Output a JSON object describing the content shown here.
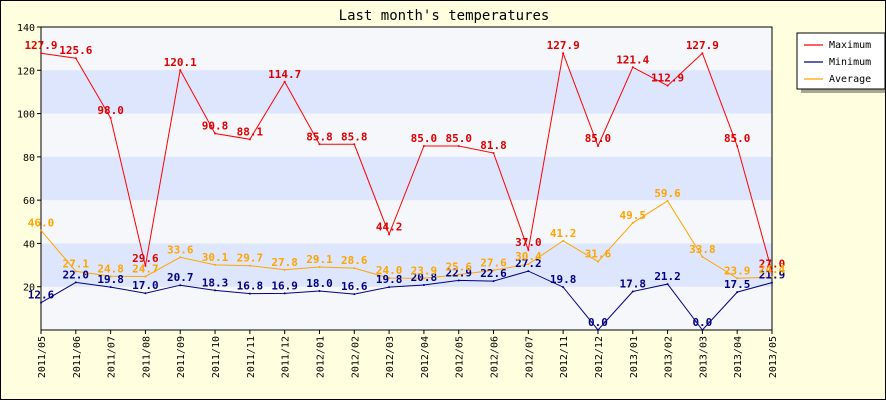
{
  "chart_data": {
    "type": "line",
    "title": "Last month's temperatures",
    "xlabel": "",
    "ylabel": "",
    "ylim": [
      0,
      140
    ],
    "yticks": [
      20,
      40,
      60,
      80,
      100,
      120,
      140
    ],
    "grid": "horizontal bands",
    "legend_position": "top-right",
    "categories": [
      "2011/05",
      "2011/06",
      "2011/07",
      "2011/08",
      "2011/09",
      "2011/10",
      "2011/11",
      "2011/12",
      "2012/01",
      "2012/02",
      "2012/03",
      "2012/04",
      "2012/05",
      "2012/06",
      "2012/07",
      "2012/11",
      "2012/12",
      "2013/01",
      "2013/02",
      "2013/03",
      "2013/04",
      "2013/05"
    ],
    "series": [
      {
        "name": "Maximum",
        "color": "#ff0000",
        "label_color": "#dd0000",
        "values": [
          127.9,
          125.6,
          98.0,
          29.6,
          120.1,
          90.8,
          88.1,
          114.7,
          85.8,
          85.8,
          44.2,
          85.0,
          85.0,
          81.8,
          37.0,
          127.9,
          85.0,
          121.4,
          112.9,
          127.9,
          85.0,
          27.0
        ],
        "labels": [
          "127.9",
          "125.6",
          "98.0",
          "29.6",
          "120.1",
          "90.8",
          "88.1",
          "114.7",
          "85.8",
          "85.8",
          "44.2",
          "85.0",
          "85.0",
          "81.8",
          "37.0",
          "127.9",
          "85.0",
          "121.4",
          "112.9",
          "127.9",
          "85.0",
          "27.0"
        ]
      },
      {
        "name": "Minimum",
        "color": "#000080",
        "label_color": "#000080",
        "values": [
          12.6,
          22.0,
          19.8,
          17.0,
          20.7,
          18.3,
          16.8,
          16.9,
          18.0,
          16.6,
          19.8,
          20.8,
          22.9,
          22.6,
          27.2,
          19.8,
          0.0,
          17.8,
          21.2,
          0.0,
          17.5,
          21.9
        ],
        "labels": [
          "12.6",
          "22.0",
          "19.8",
          "17.0",
          "20.7",
          "18.3",
          "16.8",
          "16.9",
          "18.0",
          "16.6",
          "19.8",
          "20.8",
          "22.9",
          "22.6",
          "27.2",
          "19.8",
          "0.0",
          "17.8",
          "21.2",
          "0.0",
          "17.5",
          "21.9"
        ]
      },
      {
        "name": "Average",
        "color": "#ffa500",
        "label_color": "#ffa500",
        "values": [
          46.0,
          27.1,
          24.8,
          24.7,
          33.6,
          30.1,
          29.7,
          27.8,
          29.1,
          28.6,
          24.0,
          23.9,
          25.6,
          27.6,
          30.4,
          41.2,
          31.6,
          49.5,
          59.6,
          33.8,
          23.9,
          24.4
        ],
        "labels": [
          "46.0",
          "27.1",
          "24.8",
          "24.7",
          "33.6",
          "30.1",
          "29.7",
          "27.8",
          "29.1",
          "28.6",
          "24.0",
          "23.9",
          "25.6",
          "27.6",
          "30.4",
          "41.2",
          "31.6",
          "49.5",
          "59.6",
          "33.8",
          "23.9",
          "24.4"
        ]
      }
    ]
  },
  "colors": {
    "background": "#ffffe0",
    "band_light": "#f5f7fb",
    "band_dark": "#dde6fc"
  }
}
